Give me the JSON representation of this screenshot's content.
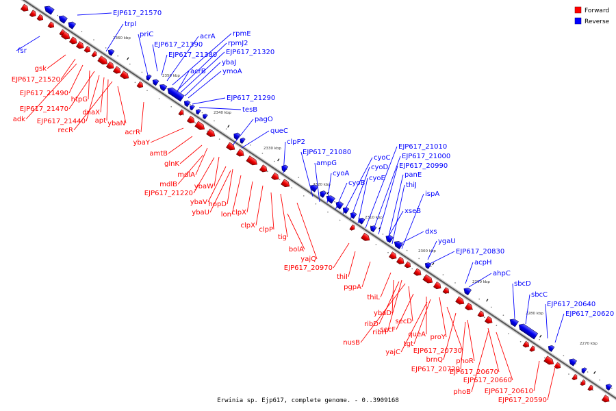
{
  "legend": {
    "forward_label": "Forward",
    "reverse_label": "Reverse",
    "forward_color": "#ff0000",
    "reverse_color": "#0000ff"
  },
  "caption": "Erwinia sp. Ejp617, complete genome. - 0..3909168",
  "tick_labels": [
    "2360 kbp",
    "2350 kbp",
    "2340 kbp",
    "2330 kbp",
    "2320 kbp",
    "2310 kbp",
    "2300 kbp",
    "2290 kbp",
    "2280 kbp",
    "2270 kbp"
  ],
  "reverse_genes": [
    "EJP617_21570",
    "trpI",
    "fsr",
    "priC",
    "acrA",
    "rpmE",
    "EJP617_21390",
    "rpmJ2",
    "EJP617_21380",
    "EJP617_21320",
    "acrB",
    "ybaJ",
    "ymoA",
    "EJP617_21290",
    "tesB",
    "pagO",
    "queC",
    "clpP2",
    "EJP617_21080",
    "ampG",
    "cyoA",
    "cyoB",
    "cyoC",
    "cyoD",
    "cyoE",
    "EJP617_21010",
    "EJP617_21000",
    "EJP617_20990",
    "panE",
    "thiJ",
    "ispA",
    "xseB",
    "dxs",
    "ygaU",
    "EJP617_20830",
    "acpH",
    "ahpC",
    "sbcD",
    "sbcC",
    "EJP617_20640",
    "EJP617_20620"
  ],
  "forward_genes": [
    "gsk",
    "EJP617_21520",
    "EJP617_21490",
    "htpG",
    "EJP617_21470",
    "dnaX",
    "adk",
    "apt",
    "EJP617_21440",
    "ybaN",
    "recR",
    "acrR",
    "ybaY",
    "amtB",
    "glnK",
    "mdlA",
    "mdlB",
    "ybaW",
    "EJP617_21220",
    "ybaV",
    "hopD",
    "ybaU",
    "lon",
    "clpX",
    "clpX",
    "clpP",
    "tig",
    "bolA",
    "yajQ",
    "EJP617_20970",
    "thiI",
    "pgpA",
    "thiL",
    "ybaD",
    "ribD",
    "secD",
    "ribH",
    "secF",
    "nusB",
    "queA",
    "proY",
    "tgt",
    "yajC",
    "EJP617_20730",
    "brnQ",
    "phoR",
    "EJP617_20720",
    "EJP617_20670",
    "EJP617_20660",
    "phoB",
    "EJP617_20610",
    "EJP617_20590"
  ]
}
